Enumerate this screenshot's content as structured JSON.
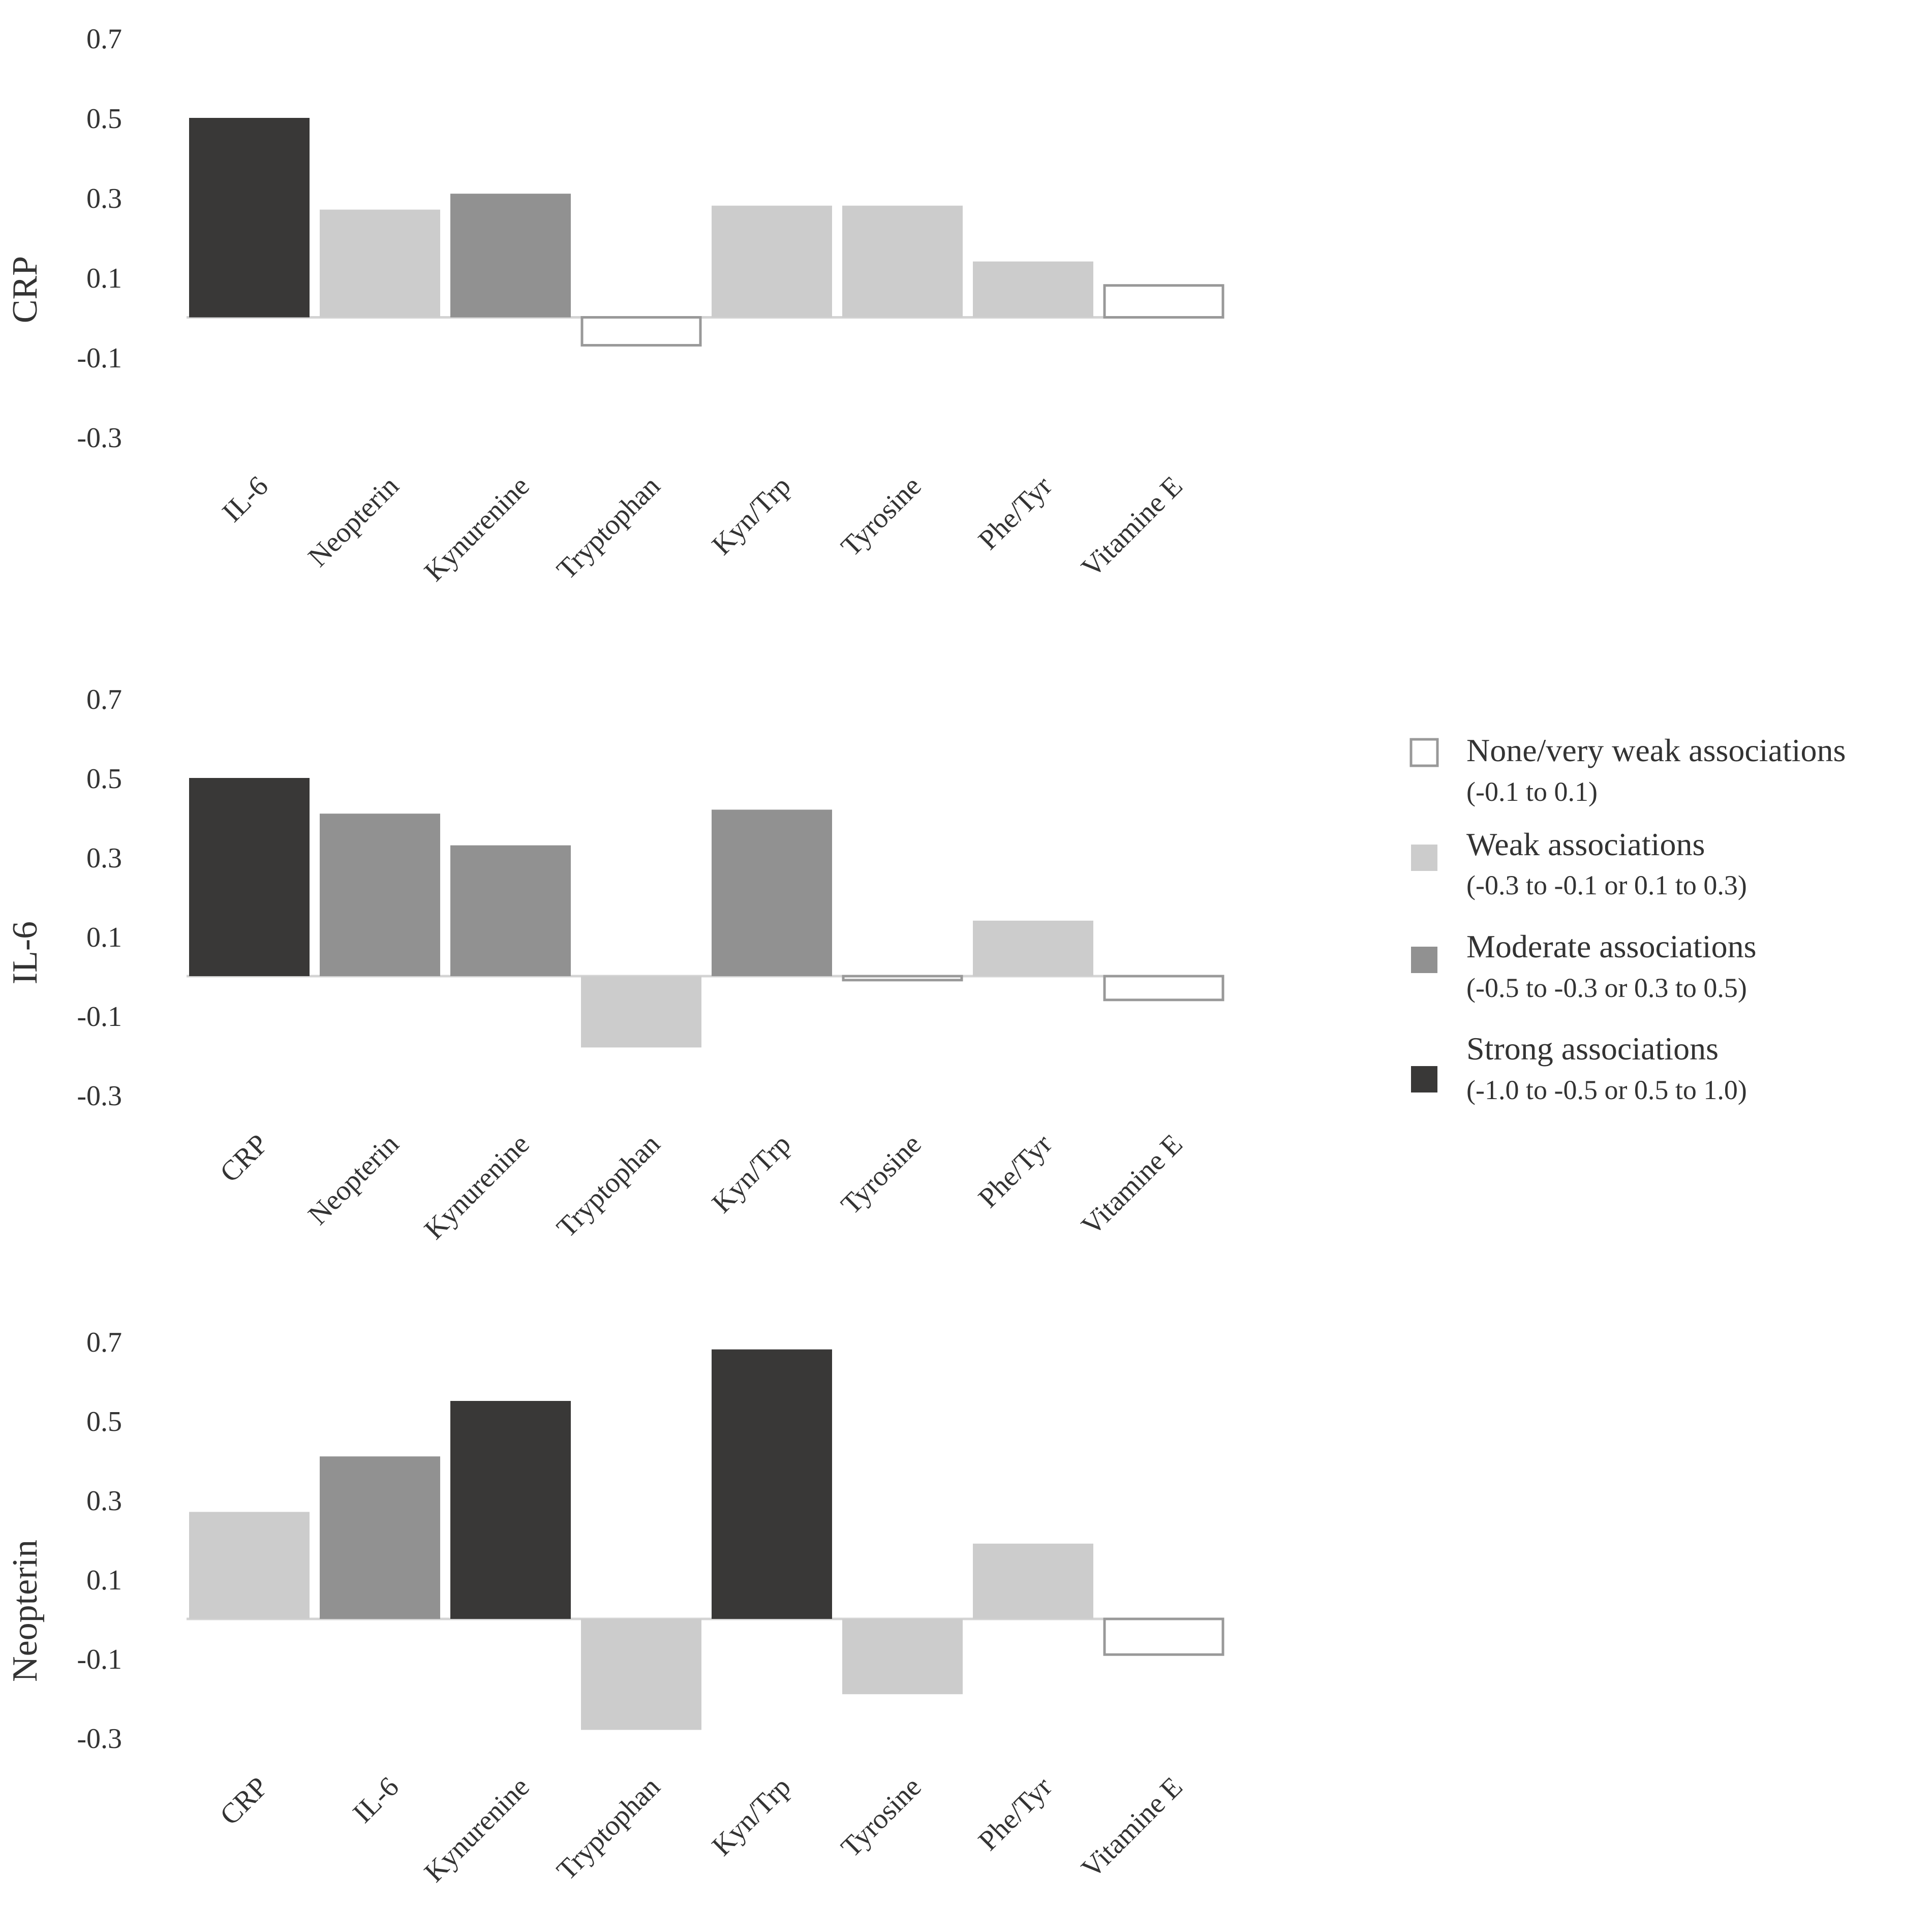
{
  "legend": {
    "none": {
      "label": "None/very weak associations",
      "range": "(-0.1 to 0.1)",
      "color": "#ffffff",
      "stroke": "#999999"
    },
    "weak": {
      "label": "Weak associations",
      "range": "(-0.3 to -0.1 or 0.1 to 0.3)",
      "color": "#cccccc"
    },
    "moderate": {
      "label": "Moderate associations",
      "range": "(-0.5 to -0.3 or 0.3 to 0.5)",
      "color": "#919191"
    },
    "strong": {
      "label": "Strong associations",
      "range": "(-1.0 to -0.5 or 0.5 to 1.0)",
      "color": "#393837"
    }
  },
  "chart_data": [
    {
      "type": "bar",
      "ylabel": "CRP",
      "categories": [
        "IL-6",
        "Neopterin",
        "Kynurenine",
        "Tryptophan",
        "Kyn/Trp",
        "Tyrosine",
        "Phe/Tyr",
        "Vitamine E"
      ],
      "values": [
        0.5,
        0.27,
        0.31,
        -0.07,
        0.28,
        0.28,
        0.14,
        0.08
      ],
      "strength": [
        "strong",
        "weak",
        "moderate",
        "none",
        "weak",
        "weak",
        "weak",
        "none"
      ],
      "yticks": [
        "0.7",
        "0.5",
        "0.3",
        "0.1",
        "-0.1",
        "-0.3"
      ],
      "ylim": [
        -0.3,
        0.7
      ]
    },
    {
      "type": "bar",
      "ylabel": "IL-6",
      "categories": [
        "CRP",
        "Neopterin",
        "Kynurenine",
        "Tryptophan",
        "Kyn/Trp",
        "Tyrosine",
        "Phe/Tyr",
        "Vitamine E"
      ],
      "values": [
        0.5,
        0.41,
        0.33,
        -0.18,
        0.42,
        -0.01,
        0.14,
        -0.06
      ],
      "strength": [
        "strong",
        "moderate",
        "moderate",
        "weak",
        "moderate",
        "none",
        "weak",
        "none"
      ],
      "yticks": [
        "0.7",
        "0.5",
        "0.3",
        "0.1",
        "-0.1",
        "-0.3"
      ],
      "ylim": [
        -0.3,
        0.7
      ]
    },
    {
      "type": "bar",
      "ylabel": "Neopterin",
      "categories": [
        "CRP",
        "IL-6",
        "Kynurenine",
        "Tryptophan",
        "Kyn/Trp",
        "Tyrosine",
        "Phe/Tyr",
        "Vitamine E"
      ],
      "values": [
        0.27,
        0.41,
        0.55,
        -0.28,
        0.68,
        -0.19,
        0.19,
        -0.09
      ],
      "strength": [
        "weak",
        "moderate",
        "strong",
        "weak",
        "strong",
        "weak",
        "weak",
        "none"
      ],
      "yticks": [
        "0.7",
        "0.5",
        "0.3",
        "0.1",
        "-0.1",
        "-0.3"
      ],
      "ylim": [
        -0.3,
        0.7
      ]
    }
  ]
}
